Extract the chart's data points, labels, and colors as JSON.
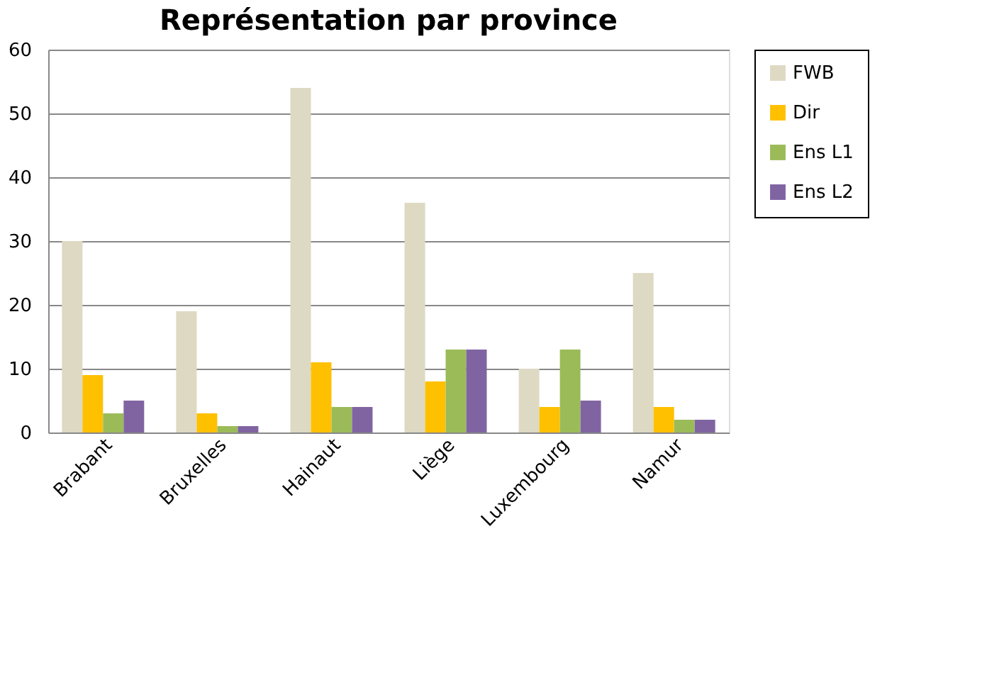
{
  "chart_data": {
    "type": "bar",
    "title": "Représentation par province",
    "categories": [
      "Brabant",
      "Bruxelles",
      "Hainaut",
      "Liège",
      "Luxembourg",
      "Namur"
    ],
    "series": [
      {
        "name": "FWB",
        "color": "#ddd9c3",
        "values": [
          30,
          19,
          54,
          36,
          10,
          25
        ]
      },
      {
        "name": "Dir",
        "color": "#ffc000",
        "values": [
          9,
          3,
          11,
          8,
          4,
          4
        ]
      },
      {
        "name": "Ens L1",
        "color": "#9bbb59",
        "values": [
          3,
          1,
          4,
          13,
          13,
          2
        ]
      },
      {
        "name": "Ens L2",
        "color": "#8064a2",
        "values": [
          5,
          1,
          4,
          13,
          5,
          2
        ]
      }
    ],
    "ylim": [
      0,
      60
    ],
    "yticks": [
      0,
      10,
      20,
      30,
      40,
      50,
      60
    ],
    "grid": "y",
    "legend": "right"
  }
}
